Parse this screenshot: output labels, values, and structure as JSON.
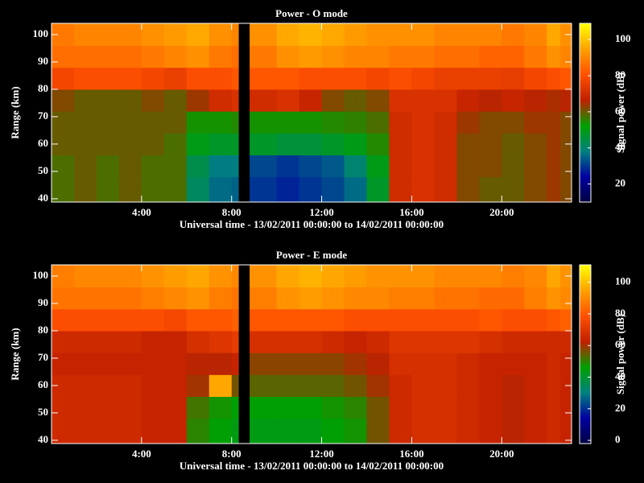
{
  "chart_data": [
    {
      "type": "heatmap",
      "title": "Power - O mode",
      "xlabel": "Universal time - 13/02/2011 00:00:00 to 14/02/2011 00:00:00",
      "ylabel": "Range (km)",
      "colorbar_label": "Signal power (dB)",
      "xlim": [
        0,
        23.1
      ],
      "xticks": [
        {
          "value": 4,
          "label": "4:00"
        },
        {
          "value": 8,
          "label": "8:00"
        },
        {
          "value": 12,
          "label": "12:00"
        },
        {
          "value": 16,
          "label": "16:00"
        },
        {
          "value": 20,
          "label": "20:00"
        }
      ],
      "ylim": [
        38.8,
        104.1
      ],
      "yticks": [
        40,
        50,
        60,
        70,
        80,
        90,
        100
      ],
      "clim": [
        10,
        109
      ],
      "cticks": [
        20,
        40,
        60,
        80,
        100
      ],
      "colors": [
        "#000040",
        "#0000a0",
        "#008080",
        "#00a000",
        "#c02000",
        "#ff5000",
        "#ffa000",
        "#ffff00"
      ],
      "x_bins": [
        0,
        1,
        2,
        3,
        4,
        5,
        6,
        7,
        8,
        8.3,
        8.8,
        10,
        11,
        12,
        13,
        14,
        15,
        16,
        17,
        18,
        19,
        20,
        21,
        22,
        22.6,
        23.1
      ],
      "y_bins": [
        38.8,
        48,
        56,
        64,
        72,
        80,
        88,
        96,
        104.1
      ],
      "z": [
        [
          58,
          60,
          58,
          60,
          58,
          58,
          42,
          36,
          35,
          null,
          30,
          28,
          30,
          32,
          36,
          48,
          70,
          72,
          70,
          62,
          60,
          60,
          62,
          64,
          62
        ],
        [
          58,
          60,
          58,
          60,
          58,
          58,
          44,
          38,
          38,
          null,
          32,
          30,
          32,
          34,
          40,
          50,
          70,
          72,
          70,
          62,
          62,
          60,
          62,
          64,
          62
        ],
        [
          60,
          60,
          60,
          60,
          60,
          58,
          50,
          48,
          48,
          null,
          48,
          46,
          46,
          48,
          50,
          55,
          70,
          72,
          70,
          62,
          62,
          60,
          62,
          64,
          62
        ],
        [
          60,
          60,
          60,
          60,
          60,
          60,
          54,
          54,
          55,
          null,
          54,
          54,
          54,
          55,
          56,
          58,
          70,
          72,
          70,
          64,
          62,
          62,
          64,
          64,
          62
        ],
        [
          62,
          60,
          60,
          60,
          62,
          60,
          64,
          70,
          72,
          null,
          70,
          72,
          68,
          62,
          60,
          62,
          72,
          72,
          72,
          68,
          66,
          68,
          66,
          65,
          66
        ],
        [
          78,
          80,
          80,
          80,
          78,
          76,
          80,
          80,
          82,
          null,
          82,
          82,
          80,
          80,
          80,
          78,
          80,
          78,
          76,
          76,
          76,
          75,
          78,
          80,
          82
        ],
        [
          86,
          86,
          86,
          86,
          88,
          90,
          92,
          88,
          86,
          null,
          88,
          92,
          94,
          92,
          90,
          90,
          88,
          88,
          86,
          86,
          84,
          84,
          88,
          92,
          90
        ],
        [
          88,
          90,
          90,
          90,
          92,
          94,
          96,
          92,
          90,
          null,
          92,
          96,
          98,
          96,
          94,
          92,
          92,
          92,
          90,
          90,
          90,
          88,
          90,
          96,
          92
        ]
      ]
    },
    {
      "type": "heatmap",
      "title": "Power - E mode",
      "xlabel": "Universal time - 13/02/2011 00:00:00 to 14/02/2011 00:00:00",
      "ylabel": "Range (km)",
      "colorbar_label": "Signal power (dB)",
      "xlim": [
        0,
        23.1
      ],
      "xticks": [
        {
          "value": 4,
          "label": "4:00"
        },
        {
          "value": 8,
          "label": "8:00"
        },
        {
          "value": 12,
          "label": "12:00"
        },
        {
          "value": 16,
          "label": "16:00"
        },
        {
          "value": 20,
          "label": "20:00"
        }
      ],
      "ylim": [
        38.8,
        104.1
      ],
      "yticks": [
        40,
        50,
        60,
        70,
        80,
        90,
        100
      ],
      "clim": [
        -2,
        111
      ],
      "cticks": [
        0,
        20,
        40,
        60,
        80,
        100
      ],
      "colors": [
        "#000040",
        "#0000a0",
        "#008080",
        "#00a000",
        "#c02000",
        "#ff5000",
        "#ffa000",
        "#ffff00"
      ],
      "x_bins": [
        0,
        1,
        2,
        3,
        4,
        5,
        6,
        7,
        8,
        8.3,
        8.8,
        10,
        11,
        12,
        13,
        14,
        15,
        16,
        17,
        18,
        19,
        20,
        21,
        22,
        22.6,
        23.1
      ],
      "y_bins": [
        38.8,
        48,
        56,
        64,
        72,
        80,
        88,
        96,
        104.1
      ],
      "z": [
        [
          66,
          66,
          66,
          66,
          64,
          64,
          50,
          46,
          44,
          null,
          44,
          44,
          44,
          46,
          48,
          56,
          66,
          68,
          68,
          66,
          64,
          62,
          64,
          66,
          64
        ],
        [
          66,
          66,
          66,
          66,
          64,
          64,
          52,
          48,
          46,
          null,
          46,
          46,
          46,
          48,
          50,
          56,
          66,
          68,
          68,
          66,
          64,
          62,
          64,
          66,
          64
        ],
        [
          66,
          66,
          66,
          66,
          64,
          64,
          60,
          96,
          56,
          null,
          54,
          54,
          54,
          54,
          56,
          60,
          66,
          68,
          68,
          66,
          64,
          62,
          64,
          66,
          64
        ],
        [
          64,
          64,
          64,
          64,
          64,
          64,
          62,
          62,
          64,
          null,
          58,
          58,
          58,
          58,
          60,
          62,
          68,
          68,
          68,
          66,
          64,
          64,
          64,
          66,
          64
        ],
        [
          66,
          66,
          66,
          66,
          64,
          64,
          68,
          70,
          72,
          null,
          68,
          68,
          68,
          66,
          64,
          66,
          70,
          70,
          70,
          70,
          68,
          66,
          66,
          66,
          66
        ],
        [
          78,
          78,
          78,
          78,
          78,
          76,
          80,
          80,
          82,
          null,
          80,
          80,
          80,
          80,
          78,
          78,
          78,
          78,
          78,
          78,
          80,
          78,
          78,
          80,
          82
        ],
        [
          86,
          86,
          86,
          86,
          88,
          90,
          92,
          88,
          86,
          null,
          88,
          92,
          94,
          92,
          90,
          90,
          88,
          88,
          86,
          86,
          84,
          84,
          88,
          92,
          90
        ],
        [
          88,
          90,
          90,
          90,
          92,
          94,
          96,
          92,
          90,
          null,
          92,
          96,
          98,
          96,
          94,
          92,
          92,
          92,
          90,
          90,
          90,
          88,
          90,
          96,
          92
        ]
      ]
    }
  ]
}
